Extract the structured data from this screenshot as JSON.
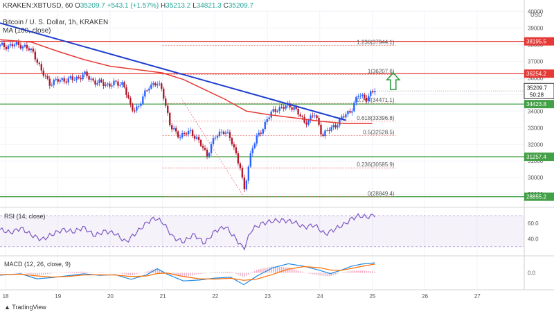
{
  "header": {
    "symbol_line": "KRAKEN:XBTUSD, 60",
    "o_label": "O",
    "o": "35209.7",
    "change": "+543.1 (+1.57%)",
    "h_label": "H",
    "h": "35213.2",
    "l_label": "L",
    "l": "34821.3",
    "c_label": "C",
    "c": "35209.7",
    "title": "Bitcoin / U. S. Dollar, 1h, KRAKEN",
    "ma_label": "MA (100, close)"
  },
  "footer": {
    "brand": "TradingView"
  },
  "colors": {
    "up": "#26a69a",
    "down": "#ef5350",
    "candle_up": "#2962ff",
    "candle_down": "#b2182b",
    "red_line": "#e53935",
    "green_line": "#43a047",
    "trend": "#1e3fcf",
    "ma": "#e53935",
    "rsi": "#7e57c2",
    "macd": "#1e88e5",
    "signal": "#ff6d00",
    "arrow": "#2e9e3e"
  },
  "chart_data": [
    {
      "type": "candlestick",
      "currency_label": "USD",
      "ylim": [
        28300,
        40100
      ],
      "y_ticks": [
        29000,
        30000,
        31000,
        32000,
        33000,
        34000,
        35000,
        36000,
        37000,
        38000,
        39000,
        40000
      ],
      "x_ticks": [
        {
          "label": "18",
          "x": 18
        },
        {
          "label": "19",
          "x": 19
        },
        {
          "label": "20",
          "x": 20
        },
        {
          "label": "21",
          "x": 21
        },
        {
          "label": "22",
          "x": 22
        },
        {
          "label": "23",
          "x": 23
        },
        {
          "label": "24",
          "x": 24
        },
        {
          "label": "25",
          "x": 25
        },
        {
          "label": "26",
          "x": 26
        },
        {
          "label": "27",
          "x": 27
        }
      ],
      "xlim": [
        17.9,
        27.9
      ],
      "price_start": 37900,
      "trajectory": [
        [
          17.9,
          37900
        ],
        [
          18.3,
          38000
        ],
        [
          18.55,
          37500
        ],
        [
          18.7,
          36300
        ],
        [
          18.85,
          35700
        ],
        [
          19.1,
          35900
        ],
        [
          19.3,
          35900
        ],
        [
          19.5,
          36200
        ],
        [
          19.75,
          35700
        ],
        [
          20.0,
          35600
        ],
        [
          20.25,
          35700
        ],
        [
          20.4,
          34100
        ],
        [
          20.55,
          34300
        ],
        [
          20.75,
          35600
        ],
        [
          20.9,
          35600
        ],
        [
          21.0,
          35300
        ],
        [
          21.15,
          33000
        ],
        [
          21.35,
          32500
        ],
        [
          21.55,
          32800
        ],
        [
          21.7,
          32100
        ],
        [
          21.85,
          31400
        ],
        [
          22.0,
          32400
        ],
        [
          22.15,
          32900
        ],
        [
          22.3,
          32300
        ],
        [
          22.4,
          31500
        ],
        [
          22.5,
          30400
        ],
        [
          22.55,
          29000
        ],
        [
          22.7,
          31800
        ],
        [
          22.9,
          32900
        ],
        [
          23.0,
          33600
        ],
        [
          23.2,
          34200
        ],
        [
          23.5,
          34300
        ],
        [
          23.7,
          33300
        ],
        [
          23.9,
          33800
        ],
        [
          24.05,
          32600
        ],
        [
          24.2,
          32900
        ],
        [
          24.4,
          33500
        ],
        [
          24.6,
          34100
        ],
        [
          24.75,
          35000
        ],
        [
          24.9,
          34800
        ],
        [
          25.05,
          35210
        ]
      ],
      "horizontal_levels": [
        {
          "value": 38195.5,
          "label": "38195.5",
          "color": "red"
        },
        {
          "value": 36254.2,
          "label": "36254.2",
          "color": "red"
        },
        {
          "value": 34423.8,
          "label": "34423.8",
          "color": "green"
        },
        {
          "value": 31257.4,
          "label": "31257.4",
          "color": "green"
        },
        {
          "value": 28855.2,
          "label": "28855.2",
          "color": "green"
        }
      ],
      "last_price": {
        "value": 35209.7,
        "label": "35209.7",
        "countdown": "50:28"
      },
      "fib_levels": [
        {
          "ratio": "1.236",
          "value": 37944.1,
          "text": "1.236(37944.1)"
        },
        {
          "ratio": "1",
          "value": 36207.6,
          "text": "1(36207.6)"
        },
        {
          "ratio": "0.764",
          "value": 34471.1,
          "text": "0.764(34471.1)"
        },
        {
          "ratio": "0.618",
          "value": 33396.8,
          "text": "0.618(33396.8)"
        },
        {
          "ratio": "0.5",
          "value": 32528.5,
          "text": "0.5(32528.5)"
        },
        {
          "ratio": "0.236",
          "value": 30585.9,
          "text": "0.236(30585.9)"
        },
        {
          "ratio": "0",
          "value": 28849.4,
          "text": "0(28849.4)"
        }
      ],
      "fib_x_range": [
        21.0,
        25.45
      ],
      "trend_line": {
        "x1": 17.9,
        "y1": 39300,
        "x2": 24.5,
        "y2": 33450
      },
      "ma": [
        [
          17.9,
          38300
        ],
        [
          18.5,
          38150
        ],
        [
          19.0,
          37600
        ],
        [
          19.5,
          37100
        ],
        [
          20.0,
          36700
        ],
        [
          20.5,
          36500
        ],
        [
          21.0,
          36300
        ],
        [
          21.4,
          35900
        ],
        [
          21.8,
          35300
        ],
        [
          22.2,
          34700
        ],
        [
          22.6,
          34000
        ],
        [
          23.0,
          33800
        ],
        [
          23.5,
          33600
        ],
        [
          24.0,
          33400
        ],
        [
          24.5,
          33250
        ],
        [
          25.0,
          33250
        ]
      ],
      "trend_arrow": "up"
    },
    {
      "type": "line",
      "name": "RSI (14, close)",
      "ylim": [
        20,
        78
      ],
      "y_ticks": [
        40.0,
        60.0
      ],
      "band": [
        30,
        70
      ],
      "values": [
        [
          17.9,
          52
        ],
        [
          18.1,
          48
        ],
        [
          18.3,
          54
        ],
        [
          18.5,
          45
        ],
        [
          18.7,
          39
        ],
        [
          18.9,
          46
        ],
        [
          19.1,
          52
        ],
        [
          19.3,
          49
        ],
        [
          19.5,
          55
        ],
        [
          19.7,
          44
        ],
        [
          19.9,
          50
        ],
        [
          20.1,
          47
        ],
        [
          20.3,
          36
        ],
        [
          20.5,
          48
        ],
        [
          20.7,
          61
        ],
        [
          20.85,
          67
        ],
        [
          21.0,
          62
        ],
        [
          21.2,
          42
        ],
        [
          21.4,
          36
        ],
        [
          21.6,
          46
        ],
        [
          21.8,
          34
        ],
        [
          22.0,
          50
        ],
        [
          22.2,
          56
        ],
        [
          22.4,
          40
        ],
        [
          22.55,
          27
        ],
        [
          22.7,
          52
        ],
        [
          22.9,
          60
        ],
        [
          23.1,
          63
        ],
        [
          23.3,
          64
        ],
        [
          23.5,
          62
        ],
        [
          23.7,
          55
        ],
        [
          23.9,
          58
        ],
        [
          24.1,
          46
        ],
        [
          24.3,
          53
        ],
        [
          24.5,
          60
        ],
        [
          24.6,
          66
        ],
        [
          24.75,
          70
        ],
        [
          24.9,
          68
        ],
        [
          25.05,
          71
        ]
      ]
    },
    {
      "type": "line",
      "name": "MACD (12, 26, close, 9)",
      "ylim": [
        -1000,
        1000
      ],
      "y_ticks": [
        0.0
      ],
      "macd": [
        [
          17.9,
          -150
        ],
        [
          18.3,
          -60
        ],
        [
          18.6,
          -380
        ],
        [
          18.9,
          -300
        ],
        [
          19.2,
          -180
        ],
        [
          19.5,
          -60
        ],
        [
          19.8,
          -160
        ],
        [
          20.1,
          -120
        ],
        [
          20.4,
          -420
        ],
        [
          20.7,
          -120
        ],
        [
          20.9,
          260
        ],
        [
          21.1,
          -100
        ],
        [
          21.4,
          -520
        ],
        [
          21.7,
          -460
        ],
        [
          22.0,
          -340
        ],
        [
          22.3,
          -280
        ],
        [
          22.55,
          -760
        ],
        [
          22.8,
          -210
        ],
        [
          23.1,
          320
        ],
        [
          23.4,
          580
        ],
        [
          23.7,
          420
        ],
        [
          24.0,
          160
        ],
        [
          24.2,
          -50
        ],
        [
          24.4,
          160
        ],
        [
          24.6,
          420
        ],
        [
          24.8,
          560
        ],
        [
          25.05,
          640
        ]
      ],
      "signal": [
        [
          17.9,
          -120
        ],
        [
          18.3,
          -90
        ],
        [
          18.6,
          -200
        ],
        [
          18.9,
          -270
        ],
        [
          19.2,
          -230
        ],
        [
          19.5,
          -140
        ],
        [
          19.8,
          -130
        ],
        [
          20.1,
          -140
        ],
        [
          20.4,
          -240
        ],
        [
          20.7,
          -200
        ],
        [
          20.9,
          -40
        ],
        [
          21.1,
          -20
        ],
        [
          21.4,
          -240
        ],
        [
          21.7,
          -380
        ],
        [
          22.0,
          -400
        ],
        [
          22.3,
          -350
        ],
        [
          22.55,
          -480
        ],
        [
          22.8,
          -400
        ],
        [
          23.1,
          -100
        ],
        [
          23.4,
          240
        ],
        [
          23.7,
          400
        ],
        [
          24.0,
          330
        ],
        [
          24.2,
          180
        ],
        [
          24.4,
          150
        ],
        [
          24.6,
          280
        ],
        [
          24.8,
          420
        ],
        [
          25.05,
          560
        ]
      ]
    }
  ]
}
